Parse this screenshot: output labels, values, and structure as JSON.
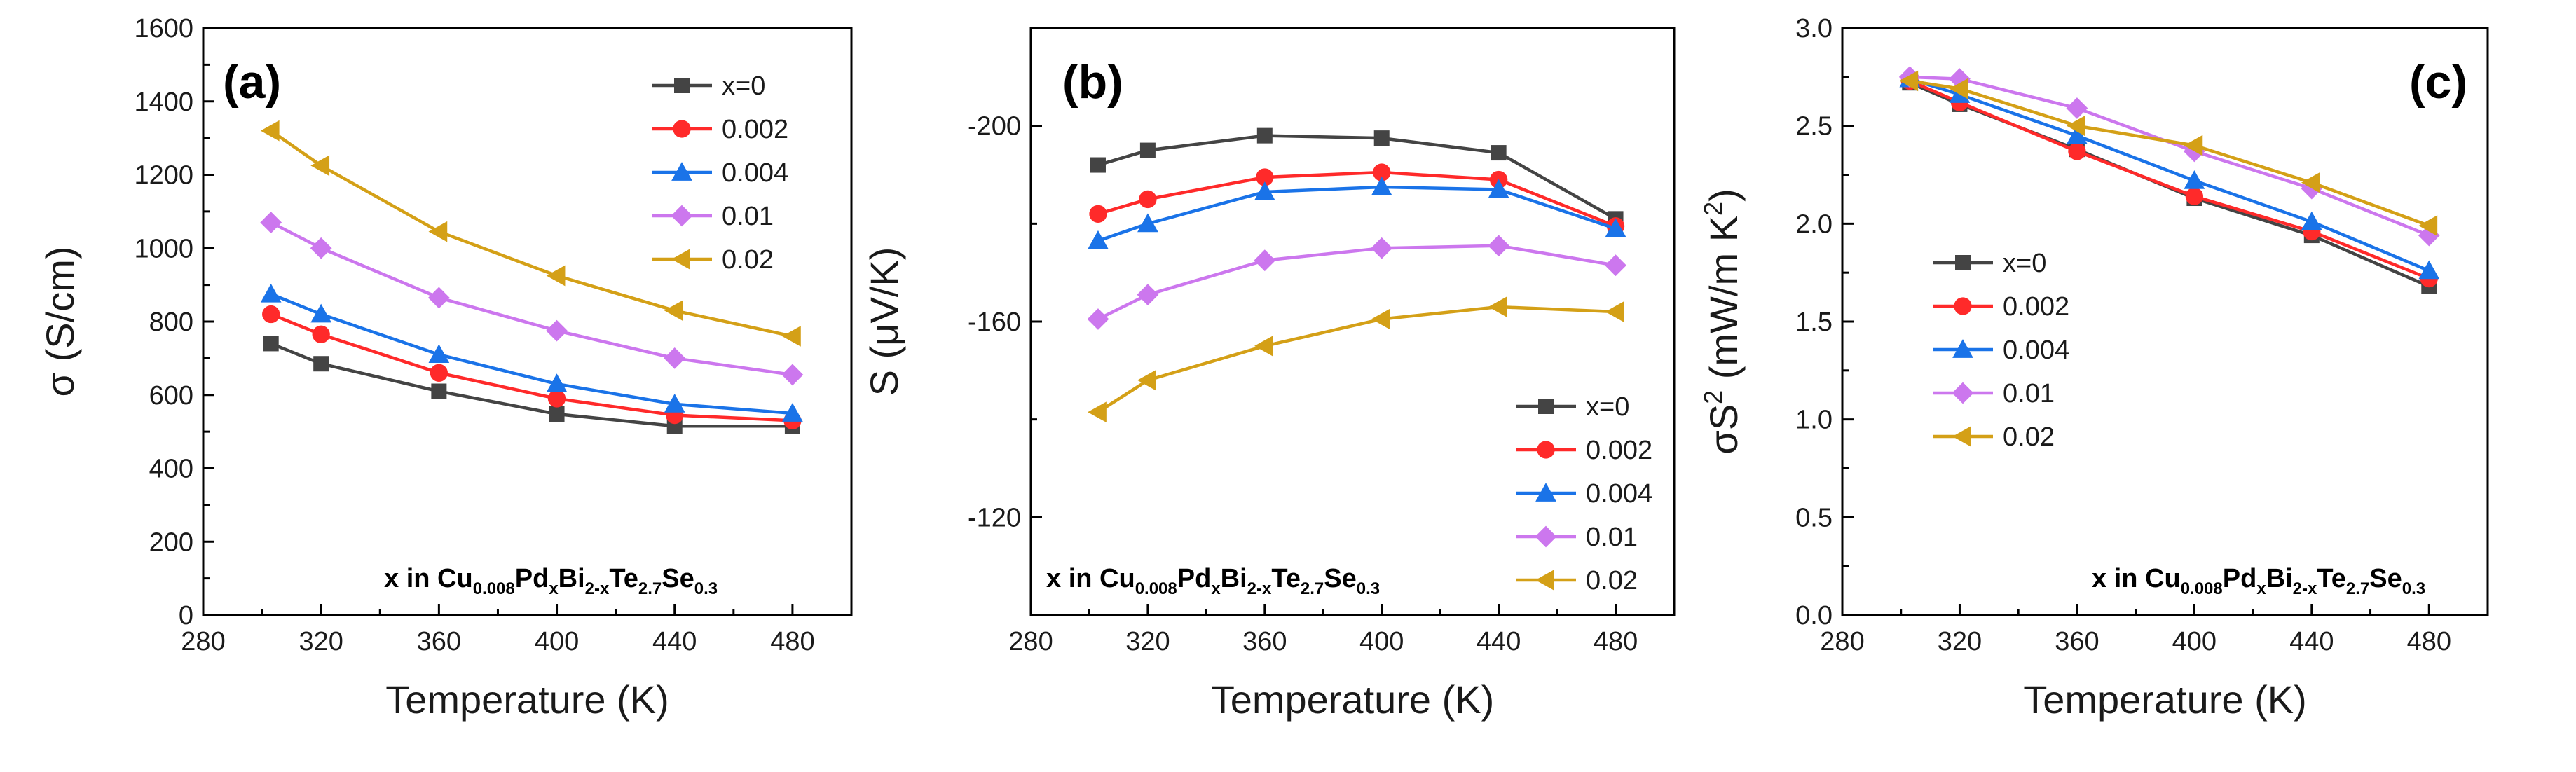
{
  "chart_data": [
    {
      "type": "line",
      "panel_label": "(a)",
      "xlabel": "Temperature (K)",
      "ylabel": "σ (S/cm)",
      "xlim": [
        280,
        500
      ],
      "ylim": [
        0,
        1600
      ],
      "x_ticks": [
        "280",
        "320",
        "360",
        "400",
        "440",
        "480"
      ],
      "y_ticks": [
        "0",
        "200",
        "400",
        "600",
        "800",
        "1000",
        "1200",
        "1400",
        "1600"
      ],
      "legend_position": "top-right",
      "annotation": {
        "prefix": "x in Cu",
        "s1": "0.008",
        "t1": "Pd",
        "s2": "x",
        "t2": "Bi",
        "s3": "2-x",
        "t3": "Te",
        "s4": "2.7",
        "t4": "Se",
        "s5": "0.3"
      },
      "x": [
        303,
        320,
        360,
        400,
        440,
        480
      ],
      "series": [
        {
          "name": "x=0",
          "color": "#444444",
          "marker": "square",
          "values": [
            740,
            685,
            610,
            548,
            515,
            515
          ]
        },
        {
          "name": "0.002",
          "color": "#ff2a2a",
          "marker": "circle",
          "values": [
            820,
            765,
            660,
            590,
            545,
            530
          ]
        },
        {
          "name": "0.004",
          "color": "#1a73e8",
          "marker": "triangle-up",
          "values": [
            875,
            820,
            710,
            630,
            575,
            550
          ]
        },
        {
          "name": "0.01",
          "color": "#cc77ee",
          "marker": "diamond",
          "values": [
            1070,
            1000,
            865,
            775,
            700,
            655
          ]
        },
        {
          "name": "0.02",
          "color": "#d4a017",
          "marker": "triangle-left",
          "values": [
            1320,
            1225,
            1045,
            925,
            830,
            760
          ]
        }
      ]
    },
    {
      "type": "line",
      "panel_label": "(b)",
      "xlabel": "Temperature (K)",
      "ylabel": "S (μV/K)",
      "xlim": [
        280,
        500
      ],
      "ylim": [
        -220,
        -100
      ],
      "y_axis_reversed": true,
      "x_ticks": [
        "280",
        "320",
        "360",
        "400",
        "440",
        "480"
      ],
      "y_ticks": [
        "-200",
        "-160",
        "-120"
      ],
      "legend_position": "bottom-right",
      "annotation": {
        "prefix": "x in Cu",
        "s1": "0.008",
        "t1": "Pd",
        "s2": "x",
        "t2": "Bi",
        "s3": "2-x",
        "t3": "Te",
        "s4": "2.7",
        "t4": "Se",
        "s5": "0.3"
      },
      "x": [
        303,
        320,
        360,
        400,
        440,
        480
      ],
      "series": [
        {
          "name": "x=0",
          "color": "#444444",
          "marker": "square",
          "values": [
            -192,
            -195,
            -198,
            -197.5,
            -194.5,
            -181
          ]
        },
        {
          "name": "0.002",
          "color": "#ff2a2a",
          "marker": "circle",
          "values": [
            -182,
            -185,
            -189.5,
            -190.5,
            -189,
            -179.5
          ]
        },
        {
          "name": "0.004",
          "color": "#1a73e8",
          "marker": "triangle-up",
          "values": [
            -176.5,
            -180,
            -186.5,
            -187.5,
            -187,
            -179
          ]
        },
        {
          "name": "0.01",
          "color": "#cc77ee",
          "marker": "diamond",
          "values": [
            -160.5,
            -165.5,
            -172.5,
            -175,
            -175.5,
            -171.5
          ]
        },
        {
          "name": "0.02",
          "color": "#d4a017",
          "marker": "triangle-left",
          "values": [
            -141.5,
            -148,
            -155,
            -160.5,
            -163,
            -162
          ]
        }
      ]
    },
    {
      "type": "line",
      "panel_label": "(c)",
      "xlabel": "Temperature (K)",
      "ylabel": "σS",
      "ylabel_sup": "2",
      "ylabel_tail": " (mW/m K",
      "ylabel_tail_sup": "2",
      "ylabel_close": ")",
      "xlim": [
        280,
        500
      ],
      "ylim": [
        0,
        3
      ],
      "x_ticks": [
        "280",
        "320",
        "360",
        "400",
        "440",
        "480"
      ],
      "y_ticks": [
        "0.0",
        "0.5",
        "1.0",
        "1.5",
        "2.0",
        "2.5",
        "3.0"
      ],
      "legend_position": "center-left",
      "annotation": {
        "prefix": "x in Cu",
        "s1": "0.008",
        "t1": "Pd",
        "s2": "x",
        "t2": "Bi",
        "s3": "2-x",
        "t3": "Te",
        "s4": "2.7",
        "t4": "Se",
        "s5": "0.3"
      },
      "x": [
        303,
        320,
        360,
        400,
        440,
        480
      ],
      "series": [
        {
          "name": "x=0",
          "color": "#444444",
          "marker": "square",
          "values": [
            2.72,
            2.61,
            2.38,
            2.13,
            1.94,
            1.68
          ]
        },
        {
          "name": "0.002",
          "color": "#ff2a2a",
          "marker": "circle",
          "values": [
            2.73,
            2.62,
            2.37,
            2.14,
            1.96,
            1.72
          ]
        },
        {
          "name": "0.004",
          "color": "#1a73e8",
          "marker": "triangle-up",
          "values": [
            2.74,
            2.66,
            2.45,
            2.22,
            2.01,
            1.76
          ]
        },
        {
          "name": "0.01",
          "color": "#cc77ee",
          "marker": "diamond",
          "values": [
            2.75,
            2.74,
            2.59,
            2.37,
            2.18,
            1.94
          ]
        },
        {
          "name": "0.02",
          "color": "#d4a017",
          "marker": "triangle-left",
          "values": [
            2.73,
            2.69,
            2.5,
            2.4,
            2.21,
            1.99
          ]
        }
      ]
    }
  ]
}
